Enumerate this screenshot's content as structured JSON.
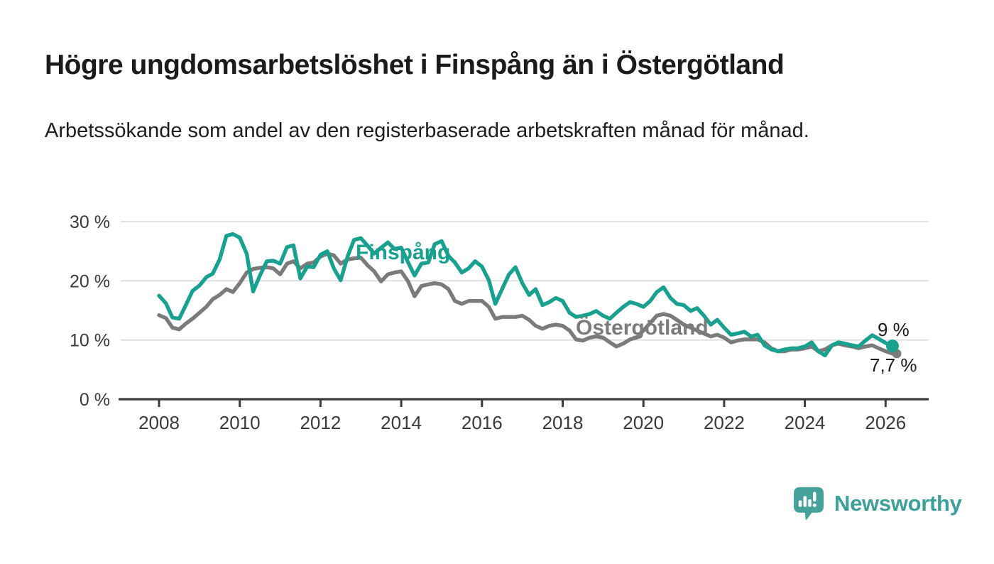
{
  "header": {
    "title": "Högre ungdomsarbetslöshet i Finspång än i Östergötland",
    "subtitle": "Arbetssökande som andel av den registerbaserade arbetskraften månad för månad."
  },
  "chart_data": {
    "type": "line",
    "title": "Högre ungdomsarbetslöshet i Finspång än i Östergötland",
    "xlabel": "",
    "ylabel": "",
    "x_unit": "decimal_year_monthly",
    "grid": true,
    "legend_position": "inline-labels-on-lines",
    "ylim": [
      0,
      32
    ],
    "xlim": [
      2007,
      2027.4
    ],
    "x_ticks": [
      2008,
      2010,
      2012,
      2014,
      2016,
      2018,
      2020,
      2022,
      2024,
      2026
    ],
    "y_ticks": [
      {
        "value": 0,
        "label": "0 %"
      },
      {
        "value": 10,
        "label": "10 %"
      },
      {
        "value": 20,
        "label": "20 %"
      },
      {
        "value": 30,
        "label": "30 %"
      }
    ],
    "x": [
      2008,
      2008.17,
      2008.33,
      2008.5,
      2008.67,
      2008.83,
      2009,
      2009.17,
      2009.33,
      2009.5,
      2009.67,
      2009.83,
      2010,
      2010.17,
      2010.33,
      2010.5,
      2010.67,
      2010.83,
      2011,
      2011.17,
      2011.33,
      2011.5,
      2011.67,
      2011.83,
      2012,
      2012.17,
      2012.33,
      2012.5,
      2012.67,
      2012.83,
      2013,
      2013.17,
      2013.33,
      2013.5,
      2013.67,
      2013.83,
      2014,
      2014.17,
      2014.33,
      2014.5,
      2014.67,
      2014.83,
      2015,
      2015.17,
      2015.33,
      2015.5,
      2015.67,
      2015.83,
      2016,
      2016.17,
      2016.33,
      2016.5,
      2016.67,
      2016.83,
      2017,
      2017.17,
      2017.33,
      2017.5,
      2017.67,
      2017.83,
      2018,
      2018.17,
      2018.33,
      2018.5,
      2018.67,
      2018.83,
      2019,
      2019.17,
      2019.33,
      2019.5,
      2019.67,
      2019.83,
      2020,
      2020.17,
      2020.33,
      2020.5,
      2020.67,
      2020.83,
      2021,
      2021.17,
      2021.33,
      2021.5,
      2021.67,
      2021.83,
      2022,
      2022.17,
      2022.33,
      2022.5,
      2022.67,
      2022.83,
      2023,
      2023.17,
      2023.33,
      2023.5,
      2023.67,
      2023.83,
      2024,
      2024.17,
      2024.33,
      2024.5,
      2024.67,
      2024.83,
      2025,
      2025.17,
      2025.33,
      2025.5,
      2025.67,
      2025.83,
      2026,
      2026.17
    ],
    "series": [
      {
        "name": "Finspång",
        "color": "#1aa08f",
        "end_label": "9 %",
        "end_value": 9,
        "values": [
          17.5,
          16.2,
          13.8,
          13.6,
          16,
          18.3,
          19.2,
          20.6,
          21.2,
          23.6,
          27.6,
          27.9,
          27.3,
          24.6,
          18.2,
          20.9,
          23.3,
          23.4,
          22.9,
          25.7,
          26,
          20.4,
          22.4,
          22.3,
          24.4,
          25,
          22.1,
          20.1,
          24.1,
          26.9,
          27.2,
          25.9,
          24.6,
          25.6,
          26.5,
          25.4,
          25.6,
          23.1,
          20.9,
          22.9,
          23.1,
          26.2,
          26.7,
          24.2,
          23.1,
          21.4,
          22.1,
          23.3,
          22.4,
          20.1,
          16.1,
          18.6,
          21.1,
          22.3,
          19.6,
          17.6,
          18.6,
          15.9,
          16.4,
          17.1,
          16.6,
          14.6,
          13.9,
          14.1,
          14.4,
          14.9,
          14.1,
          13.6,
          14.6,
          15.6,
          16.4,
          16.1,
          15.6,
          16.6,
          18.1,
          18.9,
          17.1,
          16.1,
          15.9,
          14.9,
          15.4,
          14.1,
          12.6,
          13.4,
          12.1,
          10.9,
          11.1,
          11.4,
          10.6,
          10.9,
          9.1,
          8.4,
          8.1,
          8.4,
          8.6,
          8.6,
          8.9,
          9.6,
          8.1,
          7.4,
          9.1,
          9.6,
          9.4,
          9.1,
          8.9,
          9.9,
          10.8,
          10.2,
          9.5,
          9
        ]
      },
      {
        "name": "Östergötland",
        "color": "#7b7b7b",
        "end_label": "7,7 %",
        "end_value": 7.7,
        "values": [
          14.2,
          13.7,
          12.1,
          11.8,
          12.8,
          13.6,
          14.6,
          15.6,
          16.9,
          17.6,
          18.6,
          18.1,
          19.6,
          21.4,
          22,
          22.2,
          22.3,
          22.1,
          21.1,
          22.9,
          23.3,
          22.1,
          22.9,
          23.1,
          24.1,
          24.6,
          24.3,
          22.9,
          23.6,
          23.8,
          23.9,
          22.6,
          21.6,
          19.9,
          21.1,
          21.4,
          21.6,
          19.9,
          17.4,
          19.1,
          19.4,
          19.6,
          19.4,
          18.6,
          16.6,
          16.1,
          16.6,
          16.6,
          16.6,
          15.6,
          13.6,
          13.9,
          13.9,
          13.9,
          14.1,
          13.4,
          12.4,
          11.9,
          12.4,
          12.6,
          12.4,
          11.6,
          10.1,
          9.9,
          10.4,
          10.6,
          10.4,
          9.6,
          8.9,
          9.4,
          10.1,
          10.4,
          11.6,
          12.9,
          14.1,
          14.4,
          14.1,
          13.4,
          12.6,
          12.1,
          11.6,
          11.1,
          10.6,
          10.9,
          10.4,
          9.6,
          9.9,
          10.1,
          10.1,
          10.1,
          9.6,
          8.6,
          8.1,
          8.1,
          8.4,
          8.4,
          8.6,
          8.9,
          8.1,
          8.4,
          9.1,
          9.4,
          9.1,
          8.9,
          8.6,
          8.9,
          9.1,
          8.6,
          8.1,
          7.7
        ]
      }
    ],
    "axis_color": "#3c3c3c",
    "grid_color": "#dadada",
    "tick_label_color": "#3a3a3a"
  },
  "footer": {
    "brand": "Newsworthy",
    "logo_color": "#46a09b",
    "text_color": "#3da099"
  }
}
